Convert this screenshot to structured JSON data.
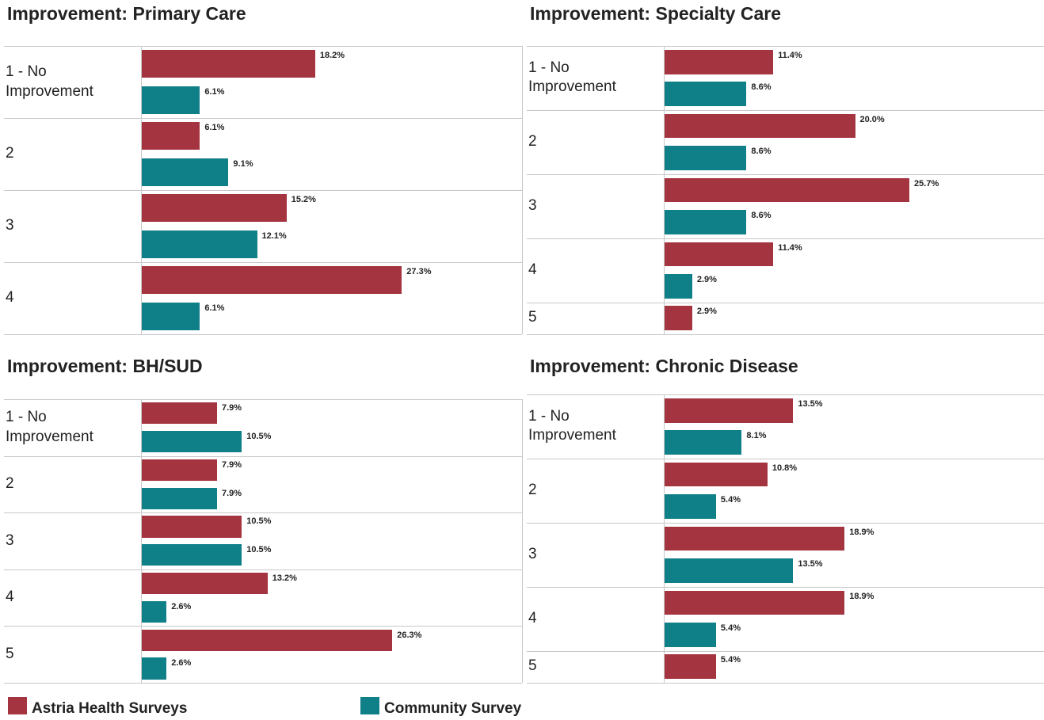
{
  "legend": [
    {
      "name": "Astria Health Surveys",
      "color": "#a4343f"
    },
    {
      "name": "Community Survey",
      "color": "#0f7f88"
    }
  ],
  "chart_data": [
    {
      "type": "bar",
      "orientation": "horizontal",
      "title": "Improvement: Primary Care",
      "categories": [
        "1 - No Improvement",
        "2",
        "3",
        "4"
      ],
      "xlim": [
        0,
        40
      ],
      "series": [
        {
          "values": [
            18.2,
            6.1,
            15.2,
            27.3
          ],
          "value_labels": [
            "18.2%",
            "6.1%",
            "15.2%",
            "27.3%"
          ]
        },
        {
          "values": [
            6.1,
            9.1,
            12.1,
            6.1
          ],
          "value_labels": [
            "6.1%",
            "9.1%",
            "12.1%",
            "6.1%"
          ]
        }
      ]
    },
    {
      "type": "bar",
      "orientation": "horizontal",
      "title": "Improvement: Specialty Care",
      "categories": [
        "1 - No Improvement",
        "2",
        "3",
        "4",
        "5"
      ],
      "xlim": [
        0,
        40
      ],
      "series": [
        {
          "values": [
            11.4,
            20.0,
            25.7,
            11.4,
            2.9
          ],
          "value_labels": [
            "11.4%",
            "20.0%",
            "25.7%",
            "11.4%",
            "2.9%"
          ]
        },
        {
          "values": [
            8.6,
            8.6,
            8.6,
            2.9,
            null
          ],
          "value_labels": [
            "8.6%",
            "8.6%",
            "8.6%",
            "2.9%",
            null
          ]
        }
      ]
    },
    {
      "type": "bar",
      "orientation": "horizontal",
      "title": "Improvement: BH/SUD",
      "categories": [
        "1 - No Improvement",
        "2",
        "3",
        "4",
        "5"
      ],
      "xlim": [
        0,
        40
      ],
      "series": [
        {
          "values": [
            7.9,
            7.9,
            10.5,
            13.2,
            26.3
          ],
          "value_labels": [
            "7.9%",
            "7.9%",
            "10.5%",
            "13.2%",
            "26.3%"
          ]
        },
        {
          "values": [
            10.5,
            7.9,
            10.5,
            2.6,
            2.6
          ],
          "value_labels": [
            "10.5%",
            "7.9%",
            "10.5%",
            "2.6%",
            "2.6%"
          ]
        }
      ]
    },
    {
      "type": "bar",
      "orientation": "horizontal",
      "title": "Improvement: Chronic Disease",
      "categories": [
        "1 - No Improvement",
        "2",
        "3",
        "4",
        "5"
      ],
      "xlim": [
        0,
        40
      ],
      "series": [
        {
          "values": [
            13.5,
            10.8,
            18.9,
            18.9,
            5.4
          ],
          "value_labels": [
            "13.5%",
            "10.8%",
            "18.9%",
            "18.9%",
            "5.4%"
          ]
        },
        {
          "values": [
            8.1,
            5.4,
            13.5,
            5.4,
            null
          ],
          "value_labels": [
            "8.1%",
            "5.4%",
            "13.5%",
            "5.4%",
            null
          ]
        }
      ]
    }
  ]
}
